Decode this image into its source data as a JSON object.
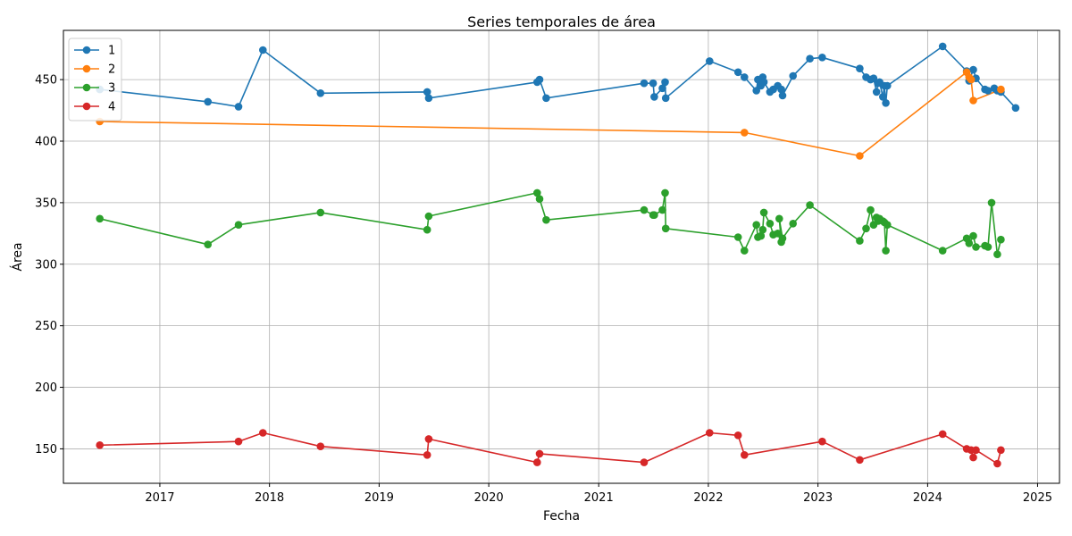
{
  "chart_data": {
    "type": "line",
    "title": "Series temporales de área",
    "xlabel": "Fecha",
    "ylabel": "Área",
    "xlim": [
      "2016-02-15",
      "2025-03-15"
    ],
    "ylim": [
      122,
      490
    ],
    "x_ticks": [
      "2017",
      "2018",
      "2019",
      "2020",
      "2021",
      "2022",
      "2023",
      "2024",
      "2025"
    ],
    "y_ticks": [
      150,
      200,
      250,
      300,
      350,
      400,
      450
    ],
    "grid": true,
    "legend_position": "top-left",
    "series": [
      {
        "name": "1",
        "color": "#1f77b4",
        "points": [
          [
            "2016-06-15",
            442
          ],
          [
            "2017-06-10",
            432
          ],
          [
            "2017-09-20",
            428
          ],
          [
            "2017-12-10",
            474
          ],
          [
            "2018-06-20",
            439
          ],
          [
            "2019-06-10",
            440
          ],
          [
            "2019-06-15",
            435
          ],
          [
            "2020-06-10",
            448
          ],
          [
            "2020-06-18",
            450
          ],
          [
            "2020-07-10",
            435
          ],
          [
            "2021-06-01",
            447
          ],
          [
            "2021-07-01",
            447
          ],
          [
            "2021-07-05",
            436
          ],
          [
            "2021-08-01",
            443
          ],
          [
            "2021-08-10",
            448
          ],
          [
            "2021-08-12",
            435
          ],
          [
            "2022-01-05",
            465
          ],
          [
            "2022-04-10",
            456
          ],
          [
            "2022-05-01",
            452
          ],
          [
            "2022-06-10",
            441
          ],
          [
            "2022-06-15",
            450
          ],
          [
            "2022-06-25",
            445
          ],
          [
            "2022-07-01",
            452
          ],
          [
            "2022-07-05",
            448
          ],
          [
            "2022-07-25",
            440
          ],
          [
            "2022-08-05",
            442
          ],
          [
            "2022-08-20",
            445
          ],
          [
            "2022-09-01",
            442
          ],
          [
            "2022-09-05",
            437
          ],
          [
            "2022-10-10",
            453
          ],
          [
            "2022-12-05",
            467
          ],
          [
            "2023-01-15",
            468
          ],
          [
            "2023-05-20",
            459
          ],
          [
            "2023-06-10",
            452
          ],
          [
            "2023-06-25",
            450
          ],
          [
            "2023-07-05",
            451
          ],
          [
            "2023-07-15",
            440
          ],
          [
            "2023-07-20",
            447
          ],
          [
            "2023-07-25",
            448
          ],
          [
            "2023-08-05",
            436
          ],
          [
            "2023-08-10",
            445
          ],
          [
            "2023-08-15",
            431
          ],
          [
            "2023-08-20",
            445
          ],
          [
            "2024-02-20",
            477
          ],
          [
            "2024-05-10",
            457
          ],
          [
            "2024-05-18",
            449
          ],
          [
            "2024-06-01",
            458
          ],
          [
            "2024-06-10",
            451
          ],
          [
            "2024-07-10",
            442
          ],
          [
            "2024-07-20",
            441
          ],
          [
            "2024-08-10",
            443
          ],
          [
            "2024-08-20",
            441
          ],
          [
            "2024-09-01",
            440
          ],
          [
            "2024-10-20",
            427
          ]
        ]
      },
      {
        "name": "2",
        "color": "#ff7f0e",
        "points": [
          [
            "2016-06-15",
            416
          ],
          [
            "2022-05-01",
            407
          ],
          [
            "2023-05-20",
            388
          ],
          [
            "2024-05-10",
            456
          ],
          [
            "2024-05-18",
            452
          ],
          [
            "2024-05-25",
            450
          ],
          [
            "2024-06-01",
            433
          ],
          [
            "2024-09-01",
            442
          ]
        ]
      },
      {
        "name": "3",
        "color": "#2ca02c",
        "points": [
          [
            "2016-06-15",
            337
          ],
          [
            "2017-06-10",
            316
          ],
          [
            "2017-09-20",
            332
          ],
          [
            "2018-06-20",
            342
          ],
          [
            "2019-06-10",
            328
          ],
          [
            "2019-06-15",
            339
          ],
          [
            "2020-06-10",
            358
          ],
          [
            "2020-06-18",
            353
          ],
          [
            "2020-07-10",
            336
          ],
          [
            "2021-06-01",
            344
          ],
          [
            "2021-07-01",
            340
          ],
          [
            "2021-07-05",
            340
          ],
          [
            "2021-08-01",
            344
          ],
          [
            "2021-08-10",
            358
          ],
          [
            "2021-08-12",
            329
          ],
          [
            "2022-04-10",
            322
          ],
          [
            "2022-05-01",
            311
          ],
          [
            "2022-06-10",
            332
          ],
          [
            "2022-06-15",
            322
          ],
          [
            "2022-06-25",
            323
          ],
          [
            "2022-07-01",
            328
          ],
          [
            "2022-07-05",
            342
          ],
          [
            "2022-07-25",
            333
          ],
          [
            "2022-08-05",
            324
          ],
          [
            "2022-08-20",
            325
          ],
          [
            "2022-09-01",
            318
          ],
          [
            "2022-08-25",
            337
          ],
          [
            "2022-09-05",
            321
          ],
          [
            "2022-10-10",
            333
          ],
          [
            "2022-12-05",
            348
          ],
          [
            "2023-05-20",
            319
          ],
          [
            "2023-06-10",
            329
          ],
          [
            "2023-06-25",
            344
          ],
          [
            "2023-07-05",
            332
          ],
          [
            "2023-07-15",
            338
          ],
          [
            "2023-07-20",
            335
          ],
          [
            "2023-07-25",
            337
          ],
          [
            "2023-08-05",
            335
          ],
          [
            "2023-08-10",
            334
          ],
          [
            "2023-08-15",
            311
          ],
          [
            "2023-08-20",
            332
          ],
          [
            "2024-02-20",
            311
          ],
          [
            "2024-05-10",
            321
          ],
          [
            "2024-05-18",
            317
          ],
          [
            "2024-06-01",
            323
          ],
          [
            "2024-06-10",
            314
          ],
          [
            "2024-07-10",
            315
          ],
          [
            "2024-07-20",
            314
          ],
          [
            "2024-08-01",
            350
          ],
          [
            "2024-08-20",
            308
          ],
          [
            "2024-09-01",
            320
          ]
        ]
      },
      {
        "name": "4",
        "color": "#d62728",
        "points": [
          [
            "2016-06-15",
            153
          ],
          [
            "2017-09-20",
            156
          ],
          [
            "2017-12-10",
            163
          ],
          [
            "2018-06-20",
            152
          ],
          [
            "2019-06-10",
            145
          ],
          [
            "2019-06-15",
            158
          ],
          [
            "2020-06-10",
            139
          ],
          [
            "2020-06-18",
            146
          ],
          [
            "2021-06-01",
            139
          ],
          [
            "2022-01-05",
            163
          ],
          [
            "2022-04-10",
            161
          ],
          [
            "2022-05-01",
            145
          ],
          [
            "2023-01-15",
            156
          ],
          [
            "2023-05-20",
            141
          ],
          [
            "2024-02-20",
            162
          ],
          [
            "2024-05-10",
            150
          ],
          [
            "2024-05-25",
            149
          ],
          [
            "2024-06-01",
            143
          ],
          [
            "2024-06-10",
            149
          ],
          [
            "2024-08-20",
            138
          ],
          [
            "2024-09-01",
            149
          ]
        ]
      }
    ]
  }
}
